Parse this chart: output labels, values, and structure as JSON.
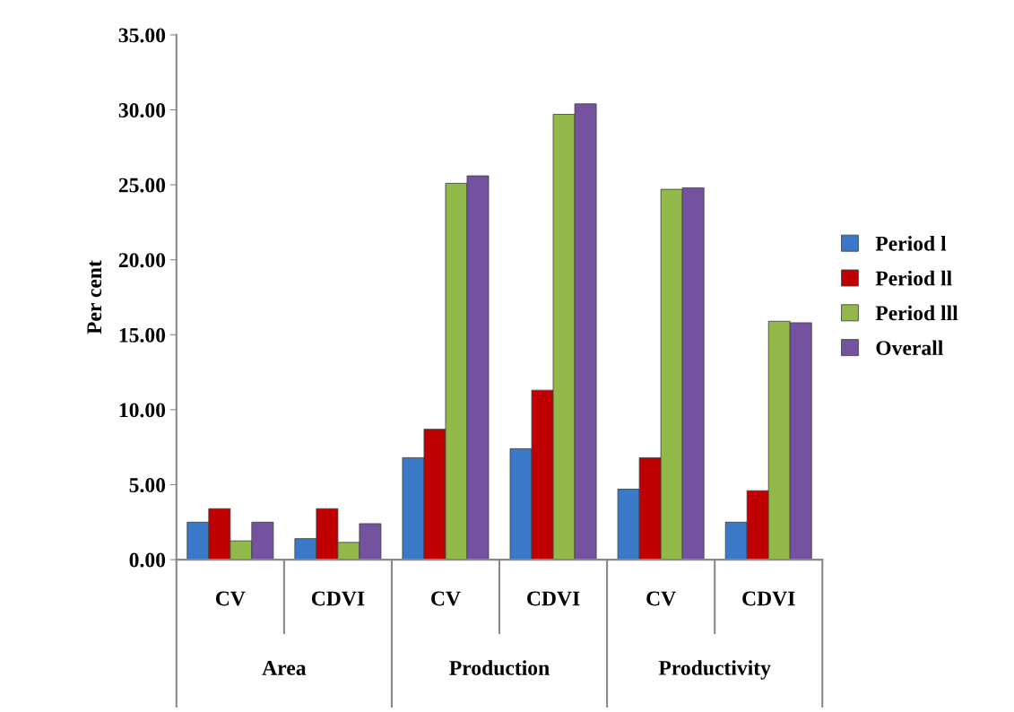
{
  "chart_data": {
    "type": "bar",
    "ylabel": "Per cent",
    "categories": [
      "CV",
      "CDVI",
      "CV",
      "CDVI",
      "CV",
      "CDVI"
    ],
    "annotations": [
      "Area",
      "Production",
      "Productivity"
    ],
    "series": [
      {
        "name": "Period l",
        "color": "#3a78c8",
        "values": [
          2.5,
          1.4,
          6.8,
          7.4,
          4.7,
          2.5
        ]
      },
      {
        "name": "Period ll",
        "color": "#c00000",
        "values": [
          3.4,
          3.4,
          8.7,
          11.3,
          6.8,
          4.6
        ]
      },
      {
        "name": "Period lll",
        "color": "#92b84a",
        "values": [
          1.25,
          1.15,
          25.1,
          29.7,
          24.7,
          15.9
        ]
      },
      {
        "name": "Overall",
        "color": "#7552a0",
        "values": [
          2.5,
          2.4,
          25.6,
          30.4,
          24.8,
          15.8
        ]
      }
    ],
    "ylim": [
      0,
      35
    ],
    "yticks": [
      {
        "value": 0,
        "label": "0.00"
      },
      {
        "value": 5,
        "label": "5.00"
      },
      {
        "value": 10,
        "label": "10.00"
      },
      {
        "value": 15,
        "label": "15.00"
      },
      {
        "value": 20,
        "label": "20.00"
      },
      {
        "value": 25,
        "label": "25.00"
      },
      {
        "value": 30,
        "label": "30.00"
      },
      {
        "value": 35,
        "label": "35.00"
      }
    ],
    "grid": false,
    "legend": "right"
  }
}
